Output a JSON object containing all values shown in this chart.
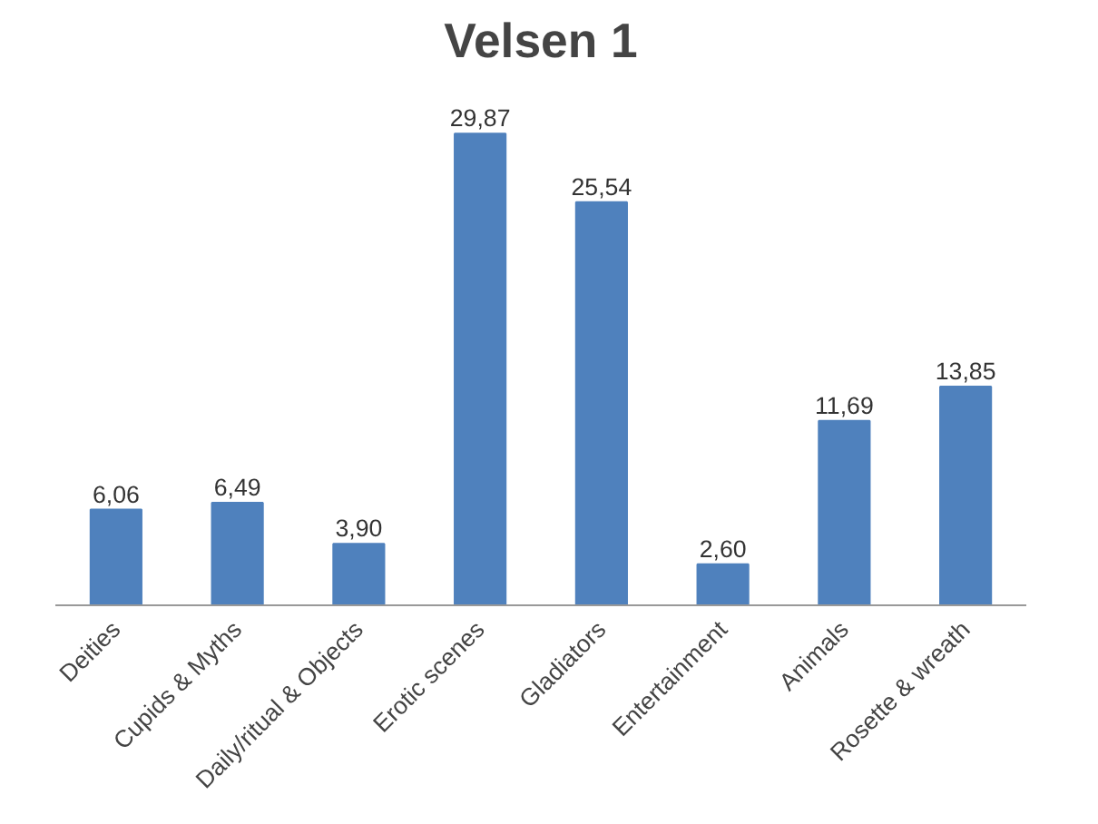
{
  "chart_data": {
    "type": "bar",
    "title": "Velsen 1",
    "categories": [
      "Deities",
      "Cupids & Myths",
      "Daily/ritual & Objects",
      "Erotic scenes",
      "Gladiators",
      "Entertainment",
      "Animals",
      "Rosette & wreath"
    ],
    "values": [
      6.06,
      6.49,
      3.9,
      29.87,
      25.54,
      2.6,
      11.69,
      13.85
    ],
    "value_labels": [
      "6,06",
      "6,49",
      "3,90",
      "29,87",
      "25,54",
      "2,60",
      "11,69",
      "13,85"
    ],
    "color": "#4f81bd",
    "grid": false
  }
}
